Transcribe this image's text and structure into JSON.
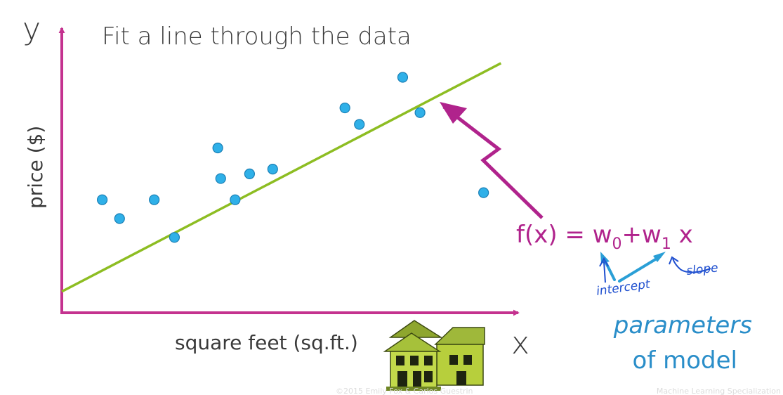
{
  "title": "Fit a line through the data",
  "axes": {
    "y_letter": "y",
    "x_letter": "x",
    "y_label": "price ($)",
    "x_label": "square feet (sq.ft.)"
  },
  "formula": {
    "lhs": "f(x) = w",
    "w0_sub": "0",
    "plus_w": "+w",
    "w1_sub": "1",
    "tail": " x"
  },
  "annotations": {
    "intercept": "intercept",
    "slope": "slope"
  },
  "parameters_label": {
    "line1": "parameters",
    "line2": "of model"
  },
  "footer": {
    "left": "©2015 Emily Fox & Carlos Guestrin",
    "right": "Machine Learning Specialization"
  },
  "colors": {
    "axis": "#c4328f",
    "fit_line": "#8dbd22",
    "point_fill": "#2fb0e8",
    "point_stroke": "#1a7fb5",
    "formula": "#b0238c",
    "handwriting": "#1f4fcf",
    "annotation_arrow": "#2a9fd6",
    "parameters_text": "#2a8ec9"
  },
  "icons": {
    "house": "house-illustration-icon"
  },
  "chart_data": {
    "type": "scatter",
    "title": "Fit a line through the data",
    "xlabel": "square feet (sq.ft.)",
    "ylabel": "price ($)",
    "points": [
      {
        "x": 1.4,
        "y": 4.8
      },
      {
        "x": 2.0,
        "y": 4.0
      },
      {
        "x": 3.2,
        "y": 4.8
      },
      {
        "x": 3.9,
        "y": 3.2
      },
      {
        "x": 5.4,
        "y": 7.0
      },
      {
        "x": 5.5,
        "y": 5.7
      },
      {
        "x": 6.0,
        "y": 4.8
      },
      {
        "x": 6.5,
        "y": 5.9
      },
      {
        "x": 7.3,
        "y": 6.1
      },
      {
        "x": 9.8,
        "y": 8.7
      },
      {
        "x": 10.3,
        "y": 8.0
      },
      {
        "x": 11.8,
        "y": 10.0
      },
      {
        "x": 12.4,
        "y": 8.5
      },
      {
        "x": 14.6,
        "y": 5.1
      }
    ],
    "fit_line": {
      "x": [
        0,
        15.2
      ],
      "y": [
        0.9,
        10.6
      ]
    },
    "xlim": [
      0,
      15.8
    ],
    "ylim": [
      0,
      12
    ],
    "grid": false,
    "legend": "none"
  }
}
